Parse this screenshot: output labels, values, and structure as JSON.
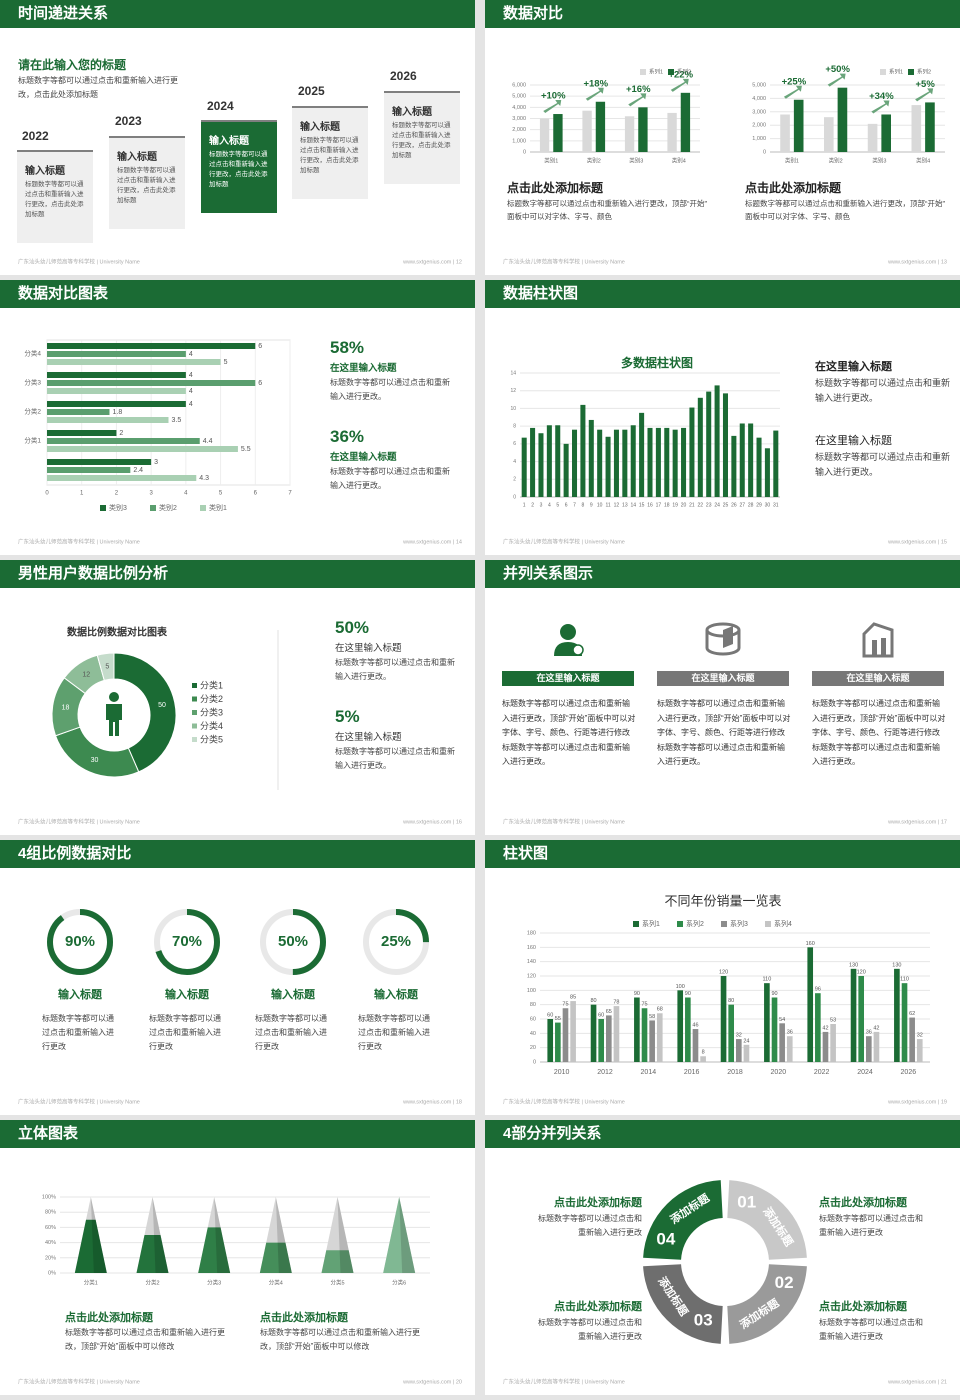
{
  "slides": [
    {
      "title": "时间递进关系",
      "heading": "请在此输入您的标题",
      "intro": "标题数字等都可以通过点击和重新输入进行更改，点击此处添加标题",
      "timeline": [
        {
          "year": "2022",
          "title": "输入标题",
          "text": "标题数字等都可以通过点击和重新输入进行更改，点击此处添加标题"
        },
        {
          "year": "2023",
          "title": "输入标题",
          "text": "标题数字等都可以通过点击和重新输入进行更改，点击此处添加标题"
        },
        {
          "year": "2024",
          "title": "输入标题",
          "text": "标题数字等都可以通过点击和重新输入进行更改，点击此处添加标题"
        },
        {
          "year": "2025",
          "title": "输入标题",
          "text": "标题数字等都可以通过点击和重新输入进行更改，点击此处添加标题"
        },
        {
          "year": "2026",
          "title": "输入标题",
          "text": "标题数字等都可以通过点击和重新输入进行更改，点击此处添加标题"
        }
      ],
      "footer_left": "广东汕头幼儿师范高等专科学校 | University Name",
      "footer_right": "www.sxtgenius.com | 12"
    },
    {
      "title": "数据对比",
      "blocks": [
        {
          "heading": "点击此处添加标题",
          "text": "标题数字等都可以通过点击和重新输入进行更改，顶部“开始”面板中可以对字体、字号、颜色"
        },
        {
          "heading": "点击此处添加标题",
          "text": "标题数字等都可以通过点击和重新输入进行更改，顶部“开始”面板中可以对字体、字号、颜色"
        }
      ],
      "footer_left": "广东汕头幼儿师范高等专科学校 | University Name",
      "footer_right": "www.sxtgenius.com | 13"
    },
    {
      "title": "数据对比图表",
      "blocks": [
        {
          "value": "58%",
          "heading": "在这里输入标题",
          "text": "标题数字等都可以通过点击和重新输入进行更改。"
        },
        {
          "value": "36%",
          "heading": "在这里输入标题",
          "text": "标题数字等都可以通过点击和重新输入进行更改。"
        }
      ],
      "footer_left": "广东汕头幼儿师范高等专科学校 | University Name",
      "footer_right": "www.sxtgenius.com | 14"
    },
    {
      "title": "数据柱状图",
      "blocks": [
        {
          "heading": "在这里输入标题",
          "text": "标题数字等都可以通过点击和重新输入进行更改。"
        },
        {
          "heading": "在这里输入标题",
          "text": "标题数字等都可以通过点击和重新输入进行更改。"
        }
      ],
      "footer_left": "广东汕头幼儿师范高等专科学校 | University Name",
      "footer_right": "www.sxtgenius.com | 15"
    },
    {
      "title": "男性用户数据比例分析",
      "blocks": [
        {
          "value": "50%",
          "heading": "在这里输入标题",
          "text": "标题数字等都可以通过点击和重新输入进行更改。"
        },
        {
          "value": "5%",
          "heading": "在这里输入标题",
          "text": "标题数字等都可以通过点击和重新输入进行更改。"
        }
      ],
      "footer_left": "广东汕头幼儿师范高等专科学校 | University Name",
      "footer_right": "www.sxtgenius.com | 16"
    },
    {
      "title": "并列关系图示",
      "blocks": [
        {
          "heading": "在这里输入标题",
          "text": "标题数字等都可以通过点击和重新输入进行更改，顶部“开始”面板中可以对字体、字号、颜色、行距等进行修改标题数字等都可以通过点击和重新输入进行更改。"
        },
        {
          "heading": "在这里输入标题",
          "text": "标题数字等都可以通过点击和重新输入进行更改，顶部“开始”面板中可以对字体、字号、颜色、行距等进行修改标题数字等都可以通过点击和重新输入进行更改。"
        },
        {
          "heading": "在这里输入标题",
          "text": "标题数字等都可以通过点击和重新输入进行更改，顶部“开始”面板中可以对字体、字号、颜色、行距等进行修改标题数字等都可以通过点击和重新输入进行更改。"
        }
      ],
      "footer_left": "广东汕头幼儿师范高等专科学校 | University Name",
      "footer_right": "www.sxtgenius.com | 17"
    },
    {
      "title": "4组比例数据对比",
      "blocks": [
        {
          "heading": "输入标题",
          "text": "标题数字等都可以通过点击和重新输入进行更改"
        },
        {
          "heading": "输入标题",
          "text": "标题数字等都可以通过点击和重新输入进行更改"
        },
        {
          "heading": "输入标题",
          "text": "标题数字等都可以通过点击和重新输入进行更改"
        },
        {
          "heading": "输入标题",
          "text": "标题数字等都可以通过点击和重新输入进行更改"
        }
      ],
      "footer_left": "广东汕头幼儿师范高等专科学校 | University Name",
      "footer_right": "www.sxtgenius.com | 18"
    },
    {
      "title": "柱状图",
      "footer_left": "广东汕头幼儿师范高等专科学校 | University Name",
      "footer_right": "www.sxtgenius.com | 19"
    },
    {
      "title": "立体图表",
      "blocks": [
        {
          "heading": "点击此处添加标题",
          "text": "标题数字等都可以通过点击和重新输入进行更改，顶部“开始”面板中可以修改"
        },
        {
          "heading": "点击此处添加标题",
          "text": "标题数字等都可以通过点击和重新输入进行更改，顶部“开始”面板中可以修改"
        }
      ],
      "footer_left": "广东汕头幼儿师范高等专科学校 | University Name",
      "footer_right": "www.sxtgenius.com | 20"
    },
    {
      "title": "4部分并列关系",
      "parts": [
        {
          "num": "01",
          "label": "添加标题"
        },
        {
          "num": "02",
          "label": "添加标题"
        },
        {
          "num": "03",
          "label": "添加标题"
        },
        {
          "num": "04",
          "label": "添加标题"
        }
      ],
      "blocks": [
        {
          "heading": "点击此处添加标题",
          "text": "标题数字等都可以通过点击和重新输入进行更改"
        },
        {
          "heading": "点击此处添加标题",
          "text": "标题数字等都可以通过点击和重新输入进行更改"
        },
        {
          "heading": "点击此处添加标题",
          "text": "标题数字等都可以通过点击和重新输入进行更改"
        },
        {
          "heading": "点击此处添加标题",
          "text": "标题数字等都可以通过点击和重新输入进行更改"
        }
      ],
      "footer_left": "广东汕头幼儿师范高等专科学校 | University Name",
      "footer_right": "www.sxtgenius.com | 21"
    }
  ],
  "chart_data": [
    {
      "type": "bar",
      "categories": [
        "类别1",
        "类别2",
        "类别3",
        "类别4"
      ],
      "series": [
        {
          "name": "系列1",
          "color": "#d9d9d9",
          "values": [
            3000,
            3700,
            3200,
            3500
          ]
        },
        {
          "name": "系列2",
          "color": "#1b6b34",
          "values": [
            3400,
            4500,
            4000,
            5300
          ]
        }
      ],
      "annotations": [
        "+10%",
        "+18%",
        "+16%",
        "+22%"
      ],
      "ylim": [
        0,
        6000
      ],
      "yticks": [
        0,
        {
          "value": 1000,
          "label": "1,000"
        },
        {
          "value": 2000,
          "label": "2,000"
        },
        {
          "value": 3000,
          "label": "3,000"
        },
        {
          "value": 4000,
          "label": "4,000"
        },
        {
          "value": 5000,
          "label": "5,000"
        },
        {
          "value": 6000,
          "label": "6,000"
        }
      ]
    },
    {
      "type": "bar",
      "categories": [
        "类别1",
        "类别2",
        "类别3",
        "类别4"
      ],
      "series": [
        {
          "name": "系列1",
          "color": "#d9d9d9",
          "values": [
            2800,
            2600,
            2100,
            3500
          ]
        },
        {
          "name": "系列2",
          "color": "#1b6b34",
          "values": [
            3900,
            4800,
            2800,
            3700
          ]
        }
      ],
      "annotations": [
        "+25%",
        "+50%",
        "+34%",
        "+5%"
      ],
      "ylim": [
        0,
        5000
      ],
      "yticks": [
        0,
        {
          "value": 1000,
          "label": "1,000"
        },
        {
          "value": 2000,
          "label": "2,000"
        },
        {
          "value": 3000,
          "label": "3,000"
        },
        {
          "value": 4000,
          "label": "4,000"
        },
        {
          "value": 5000,
          "label": "5,000"
        }
      ]
    },
    {
      "type": "hbar",
      "categories": [
        "分类4",
        "分类3",
        "分类2",
        "分类1",
        null
      ],
      "series": [
        {
          "name": "类别3",
          "color": "#1b6b34",
          "values": [
            6,
            4,
            4,
            2,
            3
          ]
        },
        {
          "name": "类别2",
          "color": "#5a9e6e",
          "values": [
            4,
            6,
            1.8,
            4.4,
            2.4
          ]
        },
        {
          "name": "类别1",
          "color": "#a9d0b3",
          "values": [
            5,
            4,
            3.5,
            5.5,
            4.3
          ]
        }
      ],
      "xlim": [
        0,
        7
      ],
      "xticks": [
        0,
        1,
        2,
        3,
        4,
        5,
        6,
        7
      ]
    },
    {
      "type": "bar",
      "title": "多数据柱状图",
      "categories": [
        "1",
        "2",
        "3",
        "4",
        "5",
        "6",
        "7",
        "8",
        "9",
        "10",
        "11",
        "12",
        "13",
        "14",
        "15",
        "16",
        "17",
        "18",
        "19",
        "20",
        "21",
        "22",
        "23",
        "24",
        "25",
        "26",
        "27",
        "28",
        "29",
        "30",
        "31"
      ],
      "values": [
        6.7,
        7.8,
        7.2,
        8.1,
        8.1,
        6,
        7.6,
        10.4,
        8.7,
        7.6,
        6.8,
        7.6,
        7.6,
        8.1,
        9.5,
        7.8,
        7.8,
        7.8,
        7.6,
        7.8,
        10.1,
        11.2,
        11.9,
        12.6,
        11.7,
        6.9,
        8.3,
        8.3,
        6.7,
        5.5,
        7.5
      ],
      "color": "#1b6b34",
      "ylim": [
        0,
        14
      ],
      "yticks": [
        0,
        2,
        4,
        6,
        8,
        10,
        12,
        14
      ]
    },
    {
      "type": "pie",
      "title": "数据比例数据对比图表",
      "categories": [
        "分类1",
        "分类2",
        "分类3",
        "分类4",
        "分类5"
      ],
      "values": [
        50,
        30,
        18,
        12,
        5
      ],
      "colors": [
        "#1b6b34",
        "#3d8a50",
        "#5ea06e",
        "#8ebd98",
        "#c5dccb"
      ]
    },
    {
      "type": "ring",
      "values": [
        90,
        70,
        50,
        25
      ],
      "value_labels": [
        "90%",
        "70%",
        "50%",
        "25%"
      ],
      "color": "#1b6b34"
    },
    {
      "type": "bar",
      "title": "不同年份销量一览表",
      "categories": [
        "2010",
        "2012",
        "2014",
        "2016",
        "2018",
        "2020",
        "2022",
        "2024",
        "2026"
      ],
      "series": [
        {
          "name": "系列1",
          "color": "#1b6b34",
          "values": [
            60,
            80,
            90,
            100,
            120,
            110,
            160,
            130,
            130
          ]
        },
        {
          "name": "系列2",
          "color": "#2e8b4a",
          "values": [
            55,
            60,
            75,
            90,
            80,
            90,
            96,
            120,
            110
          ]
        },
        {
          "name": "系列3",
          "color": "#8c8c8c",
          "values": [
            75,
            65,
            58,
            46,
            32,
            54,
            42,
            36,
            62
          ]
        },
        {
          "name": "系列4",
          "color": "#c4c4c4",
          "values": [
            85,
            78,
            68,
            8,
            24,
            36,
            53,
            42,
            32
          ]
        }
      ],
      "data_labels": true,
      "ylim": [
        0,
        180
      ],
      "yticks": [
        0,
        20,
        40,
        60,
        80,
        100,
        120,
        140,
        160,
        180
      ]
    },
    {
      "type": "pyramid",
      "categories": [
        "分类1",
        "分类2",
        "分类3",
        "分类4",
        "分类5",
        "分类6"
      ],
      "values": [
        70,
        50,
        60,
        40,
        30,
        100
      ],
      "colors": [
        "#1b6b34",
        "#23733c",
        "#2f7f47",
        "#458e5a",
        "#62a275",
        "#80b893"
      ],
      "ylim": [
        0,
        100
      ],
      "yticks": [
        {
          "value": 0,
          "label": "0%"
        },
        {
          "value": 20,
          "label": "20%"
        },
        {
          "value": 40,
          "label": "40%"
        },
        {
          "value": 60,
          "label": "60%"
        },
        {
          "value": 80,
          "label": "80%"
        },
        {
          "value": 100,
          "label": "100%"
        }
      ]
    }
  ]
}
